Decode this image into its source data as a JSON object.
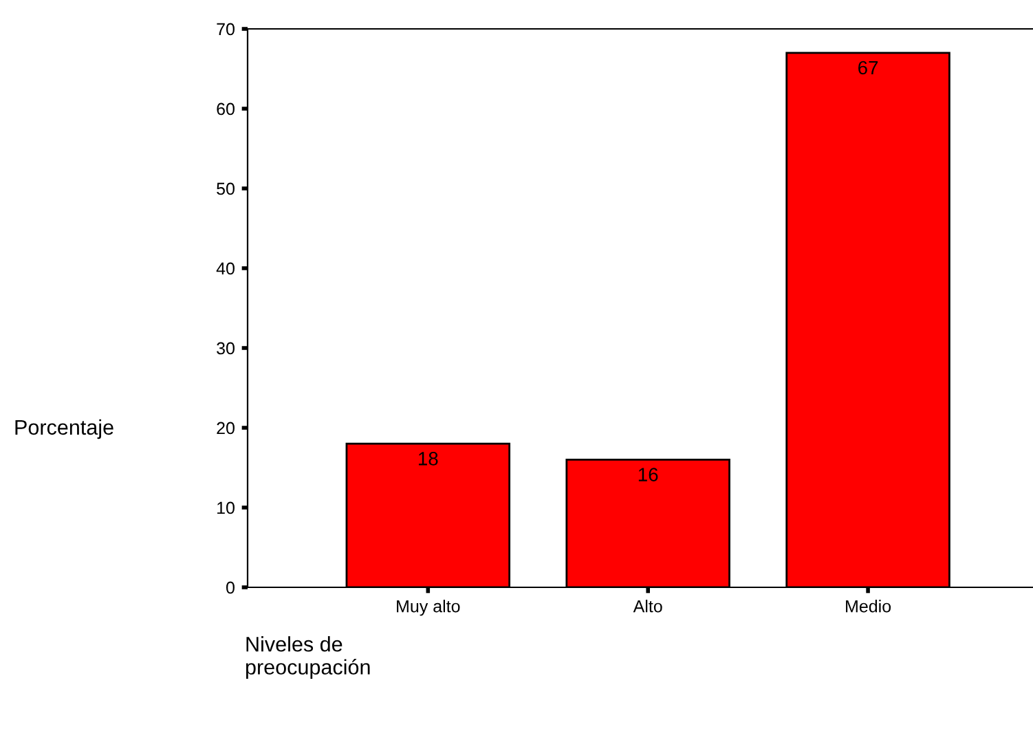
{
  "chart_data": {
    "type": "bar",
    "xlabel": "Niveles de\npreocupación",
    "ylabel": "Porcentaje",
    "categories": [
      "Muy alto",
      "Alto",
      "Medio"
    ],
    "values": [
      18,
      16,
      67
    ],
    "color": "#ff0000",
    "ylim": [
      0,
      70
    ],
    "yticks": [
      0,
      10,
      20,
      30,
      40,
      50,
      60,
      70
    ],
    "grid": false,
    "data_labels": true
  }
}
